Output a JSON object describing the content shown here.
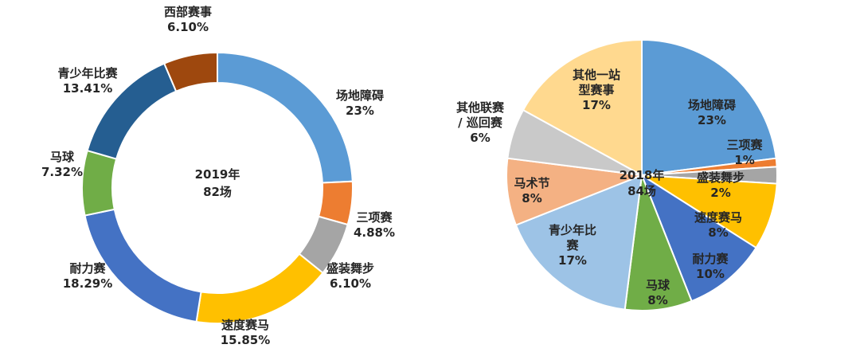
{
  "chart_data": [
    {
      "type": "donut",
      "center_label": [
        "2019年",
        "82场"
      ],
      "series": [
        {
          "name": "场地障碍",
          "value": 23,
          "value_label": "23%",
          "color": "#5B9BD5",
          "label_lines": [
            "场地障碍",
            "23%"
          ]
        },
        {
          "name": "三项赛",
          "value": 4.88,
          "value_label": "4.88%",
          "color": "#ED7D31",
          "label_lines": [
            "三项赛",
            "4.88%"
          ]
        },
        {
          "name": "盛装舞步",
          "value": 6.1,
          "value_label": "6.10%",
          "color": "#A5A5A5",
          "label_lines": [
            "盛装舞步",
            "6.10%"
          ]
        },
        {
          "name": "速度赛马",
          "value": 15.85,
          "value_label": "15.85%",
          "color": "#FFC000",
          "label_lines": [
            "速度赛马",
            "15.85%"
          ]
        },
        {
          "name": "耐力赛",
          "value": 18.29,
          "value_label": "18.29%",
          "color": "#4472C4",
          "label_lines": [
            "耐力赛",
            "18.29%"
          ]
        },
        {
          "name": "马球",
          "value": 7.32,
          "value_label": "7.32%",
          "color": "#70AD47",
          "label_lines": [
            "马球",
            "7.32%"
          ]
        },
        {
          "name": "青少年比赛",
          "value": 13.41,
          "value_label": "13.41%",
          "color": "#255E91",
          "label_lines": [
            "青少年比赛",
            "13.41%"
          ]
        },
        {
          "name": "西部赛事",
          "value": 6.1,
          "value_label": "6.10%",
          "color": "#9E480E",
          "label_lines": [
            "西部赛事",
            "6.10%"
          ]
        }
      ]
    },
    {
      "type": "pie",
      "center_label": [
        "2018年",
        "84场"
      ],
      "series": [
        {
          "name": "场地障碍",
          "value": 23,
          "value_label": "23%",
          "color": "#5B9BD5",
          "label_lines": [
            "场地障碍",
            "23%"
          ]
        },
        {
          "name": "三项赛",
          "value": 1,
          "value_label": "1%",
          "color": "#ED7D31",
          "label_lines": [
            "三项赛",
            "1%"
          ]
        },
        {
          "name": "盛装舞步",
          "value": 2,
          "value_label": "2%",
          "color": "#A5A5A5",
          "label_lines": [
            "盛装舞步",
            "2%"
          ]
        },
        {
          "name": "速度赛马",
          "value": 8,
          "value_label": "8%",
          "color": "#FFC000",
          "label_lines": [
            "速度赛马",
            "8%"
          ]
        },
        {
          "name": "耐力赛",
          "value": 10,
          "value_label": "10%",
          "color": "#4472C4",
          "label_lines": [
            "耐力赛",
            "10%"
          ]
        },
        {
          "name": "马球",
          "value": 8,
          "value_label": "8%",
          "color": "#70AD47",
          "label_lines": [
            "马球",
            "8%"
          ]
        },
        {
          "name": "青少年比赛",
          "value": 17,
          "value_label": "17%",
          "color": "#9DC3E6",
          "label_lines": [
            "青少年比",
            "赛",
            "17%"
          ]
        },
        {
          "name": "马术节",
          "value": 8,
          "value_label": "8%",
          "color": "#F4B183",
          "label_lines": [
            "马术节",
            "8%"
          ]
        },
        {
          "name": "其他联赛/巡回赛",
          "value": 6,
          "value_label": "6%",
          "color": "#C9C9C9",
          "label_lines": [
            "其他联赛",
            "/ 巡回赛",
            "6%"
          ]
        },
        {
          "name": "其他一站型赛事",
          "value": 17,
          "value_label": "17%",
          "color": "#FFD98F",
          "label_lines": [
            "其他一站",
            "型赛事",
            "17%"
          ]
        }
      ]
    }
  ]
}
